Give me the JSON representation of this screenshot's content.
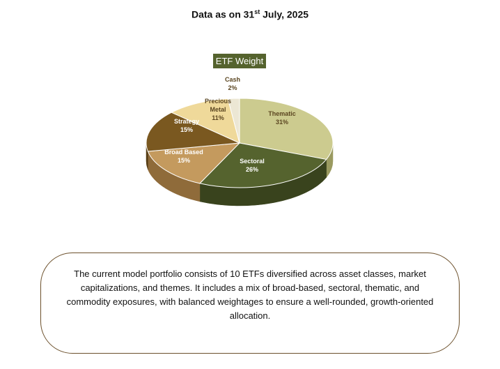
{
  "header": {
    "prefix": "Data as on 31",
    "sup": "st",
    "suffix": " July, 2025"
  },
  "chart_data": {
    "type": "pie",
    "title": "ETF Weight",
    "slices": [
      {
        "label": "Thematic",
        "value": 31,
        "value_label": "31%",
        "color": "#cccb8f",
        "dark": "#9a9a60"
      },
      {
        "label": "Sectoral",
        "value": 26,
        "value_label": "26%",
        "color": "#55632e",
        "dark": "#39431d"
      },
      {
        "label": "Broad Based",
        "value": 15,
        "value_label": "15%",
        "color": "#c49a5e",
        "dark": "#8f6b3a"
      },
      {
        "label": "Strategy",
        "value": 15,
        "value_label": "15%",
        "color": "#7a5820",
        "dark": "#553c14"
      },
      {
        "label": "Precious Metal",
        "value": 11,
        "value_label": "11%",
        "color": "#efd99a",
        "dark": "#c6b06c"
      },
      {
        "label": "Cash",
        "value": 2,
        "value_label": "2%",
        "color": "#ece7d4",
        "dark": "#c8c2aa"
      }
    ]
  },
  "caption": "The current model portfolio consists of 10 ETFs diversified across asset classes, market capitalizations, and themes. It includes a mix of broad-based, sectoral, thematic, and commodity exposures, with balanced weightages to ensure a well-rounded, growth-oriented allocation."
}
